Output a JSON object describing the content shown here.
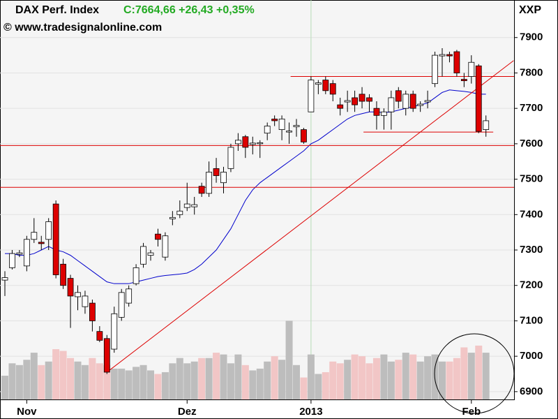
{
  "chart_data": {
    "type": "candlestick",
    "title": "DAX Perf. Index",
    "quote": "C:7664,66 +26,43 +0,35%",
    "source": "© www.tradesignalonline.com",
    "symbol": "XXP",
    "categories": [
      null,
      null,
      null,
      "Nov",
      null,
      null,
      null,
      null,
      null,
      null,
      null,
      null,
      null,
      null,
      null,
      null,
      null,
      null,
      null,
      null,
      null,
      null,
      null,
      null,
      null,
      "Dez",
      null,
      null,
      null,
      null,
      null,
      null,
      null,
      null,
      null,
      null,
      null,
      null,
      null,
      null,
      null,
      null,
      "2013",
      null,
      null,
      null,
      null,
      null,
      null,
      null,
      null,
      null,
      null,
      null,
      null,
      null,
      null,
      null,
      null,
      null,
      null,
      null,
      null,
      null,
      "Feb",
      null,
      null
    ],
    "open": [
      7215,
      7250,
      7288,
      7255,
      7330,
      7322,
      7330,
      7430,
      7260,
      7220,
      7168,
      7140,
      7150,
      7070,
      7050,
      7020,
      7110,
      7150,
      7205,
      7260,
      7285,
      7345,
      7280,
      7388,
      7400,
      7420,
      7422,
      7480,
      7460,
      7530,
      7490,
      7530,
      7600,
      7620,
      7598,
      7600,
      7630,
      7670,
      7640,
      7633,
      7648,
      7640,
      7690,
      7768,
      7780,
      7770,
      7710,
      7718,
      7730,
      7740,
      7730,
      7700,
      7680,
      7690,
      7750,
      7700,
      7740,
      7708,
      7718,
      7770,
      7848,
      7852,
      7860,
      7782,
      7790,
      7820,
      7640
    ],
    "high": [
      7240,
      7300,
      7300,
      7340,
      7390,
      7340,
      7390,
      7440,
      7275,
      7230,
      7200,
      7185,
      7160,
      7085,
      7060,
      7140,
      7190,
      7200,
      7260,
      7320,
      7300,
      7360,
      7350,
      7410,
      7440,
      7490,
      7450,
      7490,
      7550,
      7560,
      7535,
      7600,
      7630,
      7625,
      7620,
      7610,
      7660,
      7680,
      7680,
      7660,
      7670,
      7645,
      7790,
      7780,
      7790,
      7780,
      7730,
      7750,
      7750,
      7760,
      7740,
      7720,
      7700,
      7750,
      7760,
      7750,
      7750,
      7720,
      7750,
      7860,
      7870,
      7860,
      7865,
      7800,
      7850,
      7825,
      7680
    ],
    "low": [
      7170,
      7245,
      7280,
      7240,
      7320,
      7300,
      7300,
      7220,
      7190,
      7080,
      7130,
      7120,
      7070,
      7040,
      6950,
      7010,
      7100,
      7140,
      7200,
      7250,
      7270,
      7310,
      7270,
      7370,
      7390,
      7410,
      7400,
      7450,
      7450,
      7490,
      7460,
      7520,
      7580,
      7560,
      7570,
      7560,
      7610,
      7650,
      7610,
      7600,
      7620,
      7600,
      7690,
      7740,
      7740,
      7720,
      7680,
      7690,
      7690,
      7700,
      7690,
      7640,
      7640,
      7640,
      7700,
      7680,
      7690,
      7690,
      7700,
      7760,
      7790,
      7830,
      7790,
      7760,
      7770,
      7630,
      7620
    ],
    "close": [
      7222,
      7290,
      7292,
      7330,
      7350,
      7318,
      7380,
      7230,
      7200,
      7170,
      7180,
      7170,
      7100,
      7045,
      6955,
      7120,
      7180,
      7190,
      7250,
      7310,
      7292,
      7330,
      7340,
      7392,
      7410,
      7430,
      7428,
      7460,
      7520,
      7510,
      7520,
      7590,
      7610,
      7590,
      7602,
      7603,
      7650,
      7665,
      7670,
      7636,
      7652,
      7605,
      7780,
      7772,
      7750,
      7740,
      7700,
      7722,
      7710,
      7720,
      7720,
      7680,
      7690,
      7730,
      7720,
      7740,
      7700,
      7712,
      7722,
      7850,
      7852,
      7848,
      7800,
      7778,
      7830,
      7635,
      7665
    ],
    "volume": {
      "colors": [
        "#bdbdbd",
        "#f2c6c6"
      ],
      "values": [
        6945,
        6980,
        6975,
        6990,
        7010,
        6975,
        6985,
        7020,
        7015,
        6995,
        6985,
        6975,
        6995,
        6980,
        6975,
        6965,
        6965,
        6960,
        6970,
        6975,
        6960,
        6950,
        6955,
        6980,
        6995,
        6980,
        6985,
        6995,
        6995,
        7010,
        7005,
        6980,
        7005,
        6975,
        6960,
        6965,
        6985,
        7000,
        6990,
        7100,
        6975,
        6940,
        7005,
        6950,
        6955,
        6985,
        6980,
        6990,
        7005,
        7000,
        6980,
        6995,
        7005,
        6985,
        6990,
        7010,
        7005,
        6985,
        7000,
        7005,
        6985,
        6985,
        6995,
        7025,
        7010,
        7030,
        7010
      ]
    },
    "moving_average": {
      "color": "#0000cc",
      "values": [
        7290,
        7290,
        7285,
        7285,
        7290,
        7300,
        7310,
        7300,
        7295,
        7285,
        7270,
        7255,
        7240,
        7225,
        7210,
        7205,
        7205,
        7205,
        7210,
        7215,
        7220,
        7225,
        7228,
        7230,
        7232,
        7235,
        7245,
        7260,
        7280,
        7300,
        7330,
        7360,
        7400,
        7440,
        7470,
        7490,
        7505,
        7520,
        7535,
        7550,
        7565,
        7580,
        7600,
        7610,
        7625,
        7640,
        7655,
        7670,
        7680,
        7685,
        7690,
        7690,
        7688,
        7690,
        7695,
        7700,
        7705,
        7710,
        7715,
        7730,
        7745,
        7752,
        7750,
        7748,
        7745,
        7740,
        7740
      ]
    },
    "up_color": "#ffffff",
    "down_color": "#dd0000",
    "line_color": "#dd0000",
    "trend_lines": [
      {
        "x": [
          14,
          69.8
        ],
        "y": [
          6955,
          7835
        ]
      }
    ],
    "horizontal_lines": [
      {
        "value": 7595
      },
      {
        "value": 7477
      },
      {
        "value": 7790,
        "from": 39.2
      },
      {
        "value": 7633,
        "from": 49.2,
        "to": 67
      }
    ],
    "ylim": [
      6878,
      8006
    ],
    "yticks": [
      6900,
      7000,
      7100,
      7200,
      7300,
      7400,
      7500,
      7600,
      7700,
      7800,
      7900
    ],
    "grid": true
  }
}
